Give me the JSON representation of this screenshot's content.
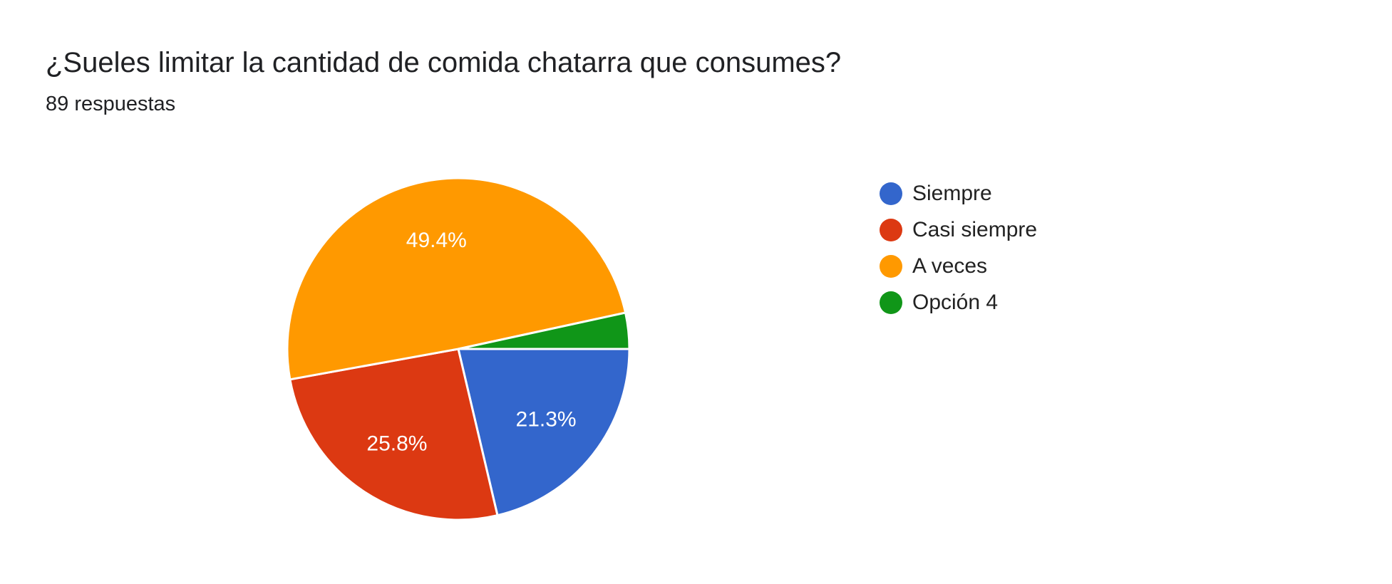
{
  "question": {
    "title": "¿Sueles limitar la cantidad de comida chatarra que consumes?",
    "responses": "89 respuestas"
  },
  "chart_data": {
    "type": "pie",
    "slices": [
      {
        "label": "Siempre",
        "value": 21.3,
        "display": "21.3%",
        "color": "#3366cc"
      },
      {
        "label": "Casi siempre",
        "value": 25.8,
        "display": "25.8%",
        "color": "#dc3912"
      },
      {
        "label": "A veces",
        "value": 49.4,
        "display": "49.4%",
        "color": "#ff9900"
      },
      {
        "label": "Opción 4",
        "value": 3.4,
        "display": "",
        "color": "#109618"
      }
    ],
    "legend_position": "right"
  }
}
